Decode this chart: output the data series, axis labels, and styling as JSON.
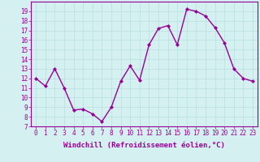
{
  "x": [
    0,
    1,
    2,
    3,
    4,
    5,
    6,
    7,
    8,
    9,
    10,
    11,
    12,
    13,
    14,
    15,
    16,
    17,
    18,
    19,
    20,
    21,
    22,
    23
  ],
  "y": [
    12.0,
    11.2,
    13.0,
    11.0,
    8.7,
    8.8,
    8.3,
    7.5,
    9.0,
    11.7,
    13.3,
    11.8,
    15.5,
    17.2,
    17.5,
    15.5,
    19.2,
    19.0,
    18.5,
    17.3,
    15.7,
    13.0,
    12.0,
    11.7
  ],
  "line_color": "#990099",
  "marker": "D",
  "marker_size": 2,
  "bg_color": "#d4f0f0",
  "grid_color": "#b8dede",
  "xlabel": "Windchill (Refroidissement éolien,°C)",
  "xlim": [
    -0.5,
    23.5
  ],
  "ylim": [
    7,
    20
  ],
  "yticks": [
    7,
    8,
    9,
    10,
    11,
    12,
    13,
    14,
    15,
    16,
    17,
    18,
    19
  ],
  "xticks": [
    0,
    1,
    2,
    3,
    4,
    5,
    6,
    7,
    8,
    9,
    10,
    11,
    12,
    13,
    14,
    15,
    16,
    17,
    18,
    19,
    20,
    21,
    22,
    23
  ],
  "tick_color": "#990099",
  "xlabel_color": "#990099",
  "xlabel_fontsize": 6.5,
  "tick_fontsize": 5.5,
  "line_width": 1.0
}
